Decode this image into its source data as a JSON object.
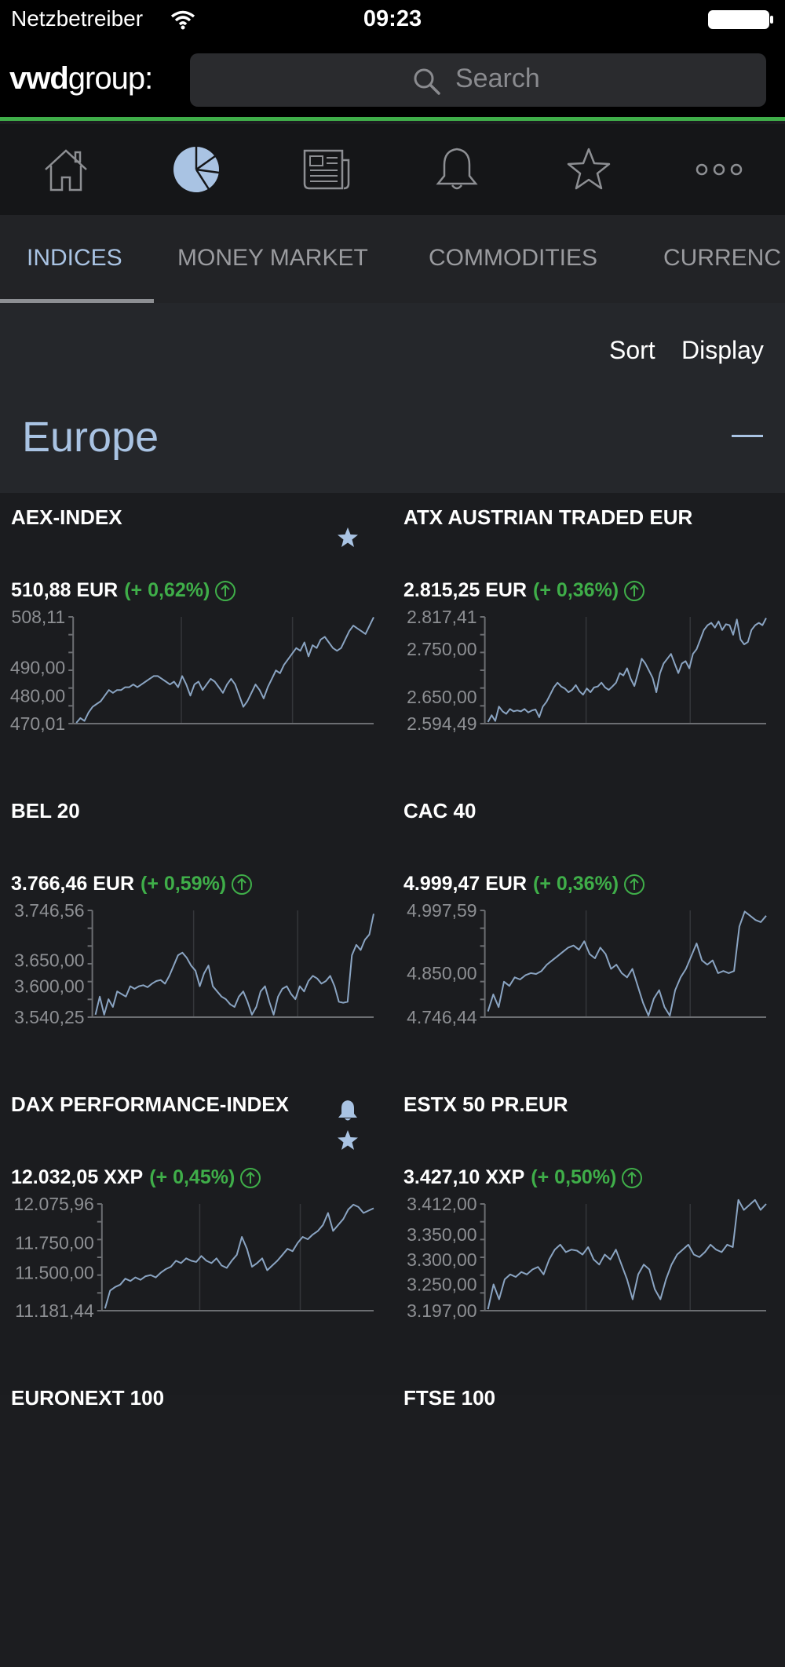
{
  "status_bar": {
    "carrier": "Netzbetreiber",
    "time": "09:23"
  },
  "header": {
    "logo_bold": "vwd",
    "logo_rest": "group:",
    "search_placeholder": "Search"
  },
  "nav_icons": [
    "home-icon",
    "pie-chart-icon",
    "newspaper-icon",
    "bell-icon",
    "star-icon",
    "more-icon"
  ],
  "tabs": [
    {
      "label": "INDICES",
      "active": true
    },
    {
      "label": "MONEY MARKET",
      "active": false
    },
    {
      "label": "COMMODITIES",
      "active": false
    },
    {
      "label": "CURRENC",
      "active": false
    }
  ],
  "toolbar": {
    "sort": "Sort",
    "display": "Display"
  },
  "region": {
    "title": "Europe"
  },
  "colors": {
    "accent": "#a9c3e3",
    "positive": "#3fae49",
    "line": "#8aa4c2",
    "background": "#1b1c1f"
  },
  "instruments": [
    {
      "name": "AEX-INDEX",
      "price": "510,88 EUR",
      "change": "(+ 0,62%)",
      "badges": [
        "star-icon"
      ],
      "chart": {
        "ticks": [
          "508,11",
          "490,00",
          "480,00",
          "470,01"
        ],
        "tick_values": [
          508.11,
          490.0,
          480.0,
          470.01
        ],
        "ymin": 470.01,
        "ymax": 508.11,
        "values": [
          470.3,
          472,
          471,
          474,
          476,
          477,
          478,
          480,
          482,
          481,
          482,
          482,
          483,
          483,
          484,
          483,
          484,
          485,
          486,
          487,
          487,
          486,
          485,
          484,
          485,
          483,
          487,
          484,
          480,
          484,
          485,
          482,
          484,
          486,
          485,
          483,
          481,
          484,
          486,
          484,
          480,
          476,
          478,
          481,
          484,
          482,
          479,
          483,
          486,
          489,
          488,
          491,
          493,
          495,
          497,
          496,
          499,
          494,
          498,
          497,
          500,
          501,
          499,
          497,
          496,
          497,
          500,
          503,
          505,
          504,
          503,
          502,
          505,
          508
        ]
      }
    },
    {
      "name": "ATX AUSTRIAN TRADED EUR",
      "price": "2.815,25 EUR",
      "change": "(+ 0,36%)",
      "badges": [],
      "chart": {
        "ticks": [
          "2.817,41",
          "2.750,00",
          "2.650,00",
          "2.594,49"
        ],
        "tick_values": [
          2817.41,
          2750.0,
          2650.0,
          2594.49
        ],
        "ymin": 2594.49,
        "ymax": 2817.41,
        "values": [
          2598,
          2612,
          2600,
          2630,
          2620,
          2615,
          2625,
          2620,
          2622,
          2620,
          2625,
          2618,
          2622,
          2624,
          2608,
          2630,
          2640,
          2655,
          2670,
          2680,
          2672,
          2668,
          2660,
          2665,
          2675,
          2662,
          2655,
          2668,
          2660,
          2670,
          2672,
          2680,
          2670,
          2665,
          2672,
          2680,
          2700,
          2695,
          2710,
          2688,
          2673,
          2700,
          2730,
          2720,
          2705,
          2690,
          2660,
          2700,
          2720,
          2730,
          2740,
          2720,
          2700,
          2720,
          2725,
          2710,
          2740,
          2750,
          2770,
          2790,
          2800,
          2805,
          2795,
          2808,
          2790,
          2802,
          2800,
          2780,
          2812,
          2770,
          2760,
          2765,
          2790,
          2800,
          2805,
          2800,
          2815
        ]
      }
    },
    {
      "name": "BEL 20",
      "price": "3.766,46 EUR",
      "change": "(+ 0,59%)",
      "badges": [],
      "chart": {
        "ticks": [
          "3.746,56",
          "3.650,00",
          "3.600,00",
          "3.540,25"
        ],
        "tick_values": [
          3746.56,
          3650.0,
          3600.0,
          3540.25
        ],
        "ymin": 3540.25,
        "ymax": 3746.56,
        "values": [
          3545,
          3580,
          3545,
          3575,
          3560,
          3590,
          3585,
          3580,
          3600,
          3595,
          3600,
          3602,
          3598,
          3605,
          3610,
          3612,
          3605,
          3620,
          3640,
          3660,
          3665,
          3655,
          3640,
          3630,
          3600,
          3625,
          3640,
          3600,
          3590,
          3580,
          3575,
          3565,
          3560,
          3580,
          3590,
          3570,
          3545,
          3560,
          3590,
          3600,
          3570,
          3545,
          3580,
          3595,
          3600,
          3585,
          3575,
          3600,
          3590,
          3610,
          3620,
          3615,
          3605,
          3610,
          3620,
          3600,
          3570,
          3568,
          3570,
          3660,
          3680,
          3670,
          3690,
          3700,
          3740
        ]
      }
    },
    {
      "name": "CAC 40",
      "price": "4.999,47 EUR",
      "change": "(+ 0,36%)",
      "badges": [],
      "chart": {
        "ticks": [
          "4.997,59",
          "4.850,00",
          "4.746,44"
        ],
        "tick_values": [
          4997.59,
          4850.0,
          4746.44
        ],
        "ymin": 4746.44,
        "ymax": 4997.59,
        "values": [
          4760,
          4800,
          4770,
          4830,
          4820,
          4840,
          4835,
          4845,
          4850,
          4848,
          4855,
          4870,
          4880,
          4890,
          4900,
          4910,
          4915,
          4905,
          4925,
          4895,
          4885,
          4910,
          4895,
          4860,
          4870,
          4850,
          4840,
          4860,
          4820,
          4780,
          4750,
          4790,
          4810,
          4770,
          4750,
          4810,
          4840,
          4860,
          4890,
          4920,
          4880,
          4870,
          4880,
          4850,
          4855,
          4850,
          4855,
          4960,
          4995,
          4985,
          4975,
          4970,
          4985
        ]
      }
    },
    {
      "name": "DAX PERFORMANCE-INDEX",
      "price": "12.032,05 XXP",
      "change": "(+ 0,45%)",
      "badges": [
        "bell-icon",
        "star-icon"
      ],
      "chart": {
        "ticks": [
          "12.075,96",
          "11.750,00",
          "11.500,00",
          "11.181,44"
        ],
        "tick_values": [
          12075.96,
          11750.0,
          11500.0,
          11181.44
        ],
        "ymin": 11181.44,
        "ymax": 12075.96,
        "values": [
          11200,
          11350,
          11380,
          11400,
          11450,
          11430,
          11460,
          11440,
          11470,
          11480,
          11460,
          11500,
          11530,
          11550,
          11600,
          11580,
          11620,
          11600,
          11590,
          11640,
          11600,
          11580,
          11620,
          11560,
          11540,
          11600,
          11650,
          11800,
          11700,
          11550,
          11580,
          11620,
          11520,
          11560,
          11600,
          11650,
          11700,
          11680,
          11750,
          11800,
          11780,
          11820,
          11850,
          11900,
          12000,
          11850,
          11900,
          11950,
          12030,
          12070,
          12050,
          12000,
          12020,
          12040
        ]
      }
    },
    {
      "name": "ESTX 50 PR.EUR",
      "price": "3.427,10 XXP",
      "change": "(+ 0,50%)",
      "badges": [],
      "chart": {
        "ticks": [
          "3.412,00",
          "3.350,00",
          "3.300,00",
          "3.250,00",
          "3.197,00"
        ],
        "tick_values": [
          3412.0,
          3350.0,
          3300.0,
          3250.0,
          3197.0
        ],
        "ymin": 3197.0,
        "ymax": 3412.0,
        "values": [
          3200,
          3250,
          3220,
          3260,
          3270,
          3265,
          3275,
          3270,
          3280,
          3285,
          3270,
          3300,
          3320,
          3330,
          3315,
          3320,
          3318,
          3310,
          3325,
          3300,
          3290,
          3310,
          3300,
          3320,
          3290,
          3260,
          3220,
          3270,
          3290,
          3280,
          3240,
          3220,
          3260,
          3290,
          3310,
          3320,
          3330,
          3310,
          3305,
          3315,
          3330,
          3320,
          3315,
          3330,
          3325,
          3420,
          3400,
          3410,
          3420,
          3400,
          3412
        ]
      }
    },
    {
      "name": "EURONEXT 100"
    },
    {
      "name": "FTSE 100"
    }
  ]
}
